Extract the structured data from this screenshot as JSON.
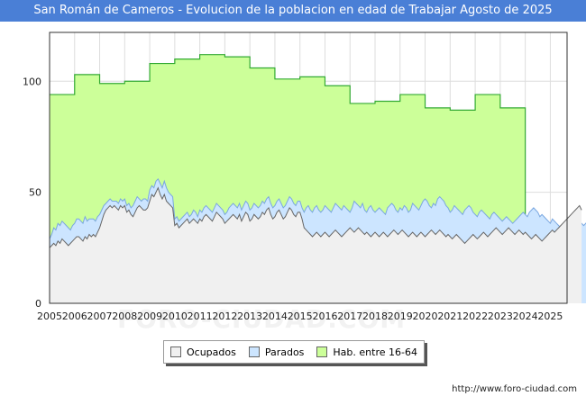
{
  "chart_data": {
    "type": "area",
    "title": "San Román de Cameros - Evolucion de la poblacion en edad de Trabajar Agosto de 2025",
    "x_ticks": [
      "2005",
      "2006",
      "2007",
      "2008",
      "2009",
      "2010",
      "2011",
      "2012",
      "2013",
      "2014",
      "2015",
      "2016",
      "2017",
      "2018",
      "2019",
      "2020",
      "2021",
      "2022",
      "2023",
      "2024",
      "2025"
    ],
    "y_ticks": [
      0,
      50,
      100
    ],
    "ylim": [
      0,
      122
    ],
    "xlim": [
      2005,
      2025.67
    ],
    "grid": true,
    "legend_position": "bottom-center",
    "series": [
      {
        "name": "Hab. entre 16-64",
        "color": "#ccff99",
        "kind": "step",
        "x": [
          2005,
          2006,
          2007,
          2008,
          2009,
          2010,
          2011,
          2012,
          2013,
          2014,
          2015,
          2016,
          2017,
          2018,
          2019,
          2020,
          2021,
          2022,
          2023
        ],
        "values": [
          94,
          103,
          99,
          100,
          108,
          110,
          112,
          111,
          106,
          101,
          102,
          98,
          90,
          91,
          94,
          88,
          87,
          94,
          88
        ]
      },
      {
        "name": "Parados",
        "color": "#cce5ff",
        "kind": "monthly",
        "x_start": 2005,
        "values": [
          29,
          31,
          34,
          33,
          36,
          35,
          37,
          36,
          35,
          34,
          33,
          35,
          36,
          38,
          38,
          37,
          36,
          39,
          37,
          38,
          38,
          38,
          37,
          39,
          40,
          42,
          44,
          45,
          46,
          47,
          46,
          46,
          46,
          45,
          47,
          46,
          47,
          44,
          45,
          43,
          44,
          46,
          48,
          47,
          46,
          47,
          47,
          46,
          51,
          53,
          52,
          55,
          56,
          54,
          52,
          55,
          52,
          50,
          49,
          48,
          38,
          39,
          37,
          38,
          39,
          40,
          41,
          39,
          40,
          42,
          41,
          39,
          42,
          41,
          43,
          44,
          43,
          42,
          41,
          43,
          45,
          44,
          43,
          42,
          40,
          41,
          43,
          44,
          45,
          44,
          43,
          45,
          42,
          44,
          46,
          45,
          42,
          43,
          45,
          44,
          43,
          44,
          46,
          45,
          47,
          48,
          45,
          43,
          44,
          46,
          47,
          45,
          43,
          44,
          46,
          48,
          47,
          45,
          44,
          46,
          46,
          43,
          41,
          43,
          44,
          42,
          41,
          43,
          44,
          42,
          41,
          42,
          44,
          43,
          42,
          41,
          43,
          45,
          44,
          43,
          42,
          44,
          43,
          42,
          41,
          43,
          46,
          45,
          44,
          43,
          45,
          42,
          41,
          43,
          44,
          42,
          41,
          42,
          43,
          42,
          41,
          40,
          43,
          44,
          45,
          44,
          42,
          41,
          43,
          42,
          44,
          43,
          41,
          42,
          45,
          44,
          43,
          42,
          44,
          46,
          47,
          46,
          44,
          43,
          45,
          44,
          47,
          48,
          47,
          46,
          44,
          43,
          41,
          42,
          44,
          43,
          42,
          41,
          40,
          42,
          43,
          44,
          43,
          41,
          40,
          39,
          41,
          42,
          41,
          40,
          39,
          38,
          40,
          41,
          40,
          39,
          38,
          37,
          38,
          39,
          38,
          37,
          36,
          37,
          38,
          39,
          40,
          41,
          40,
          39,
          41,
          42,
          43,
          42,
          41,
          39,
          40,
          39,
          38,
          37,
          36,
          38,
          37,
          36,
          35,
          34,
          35,
          36,
          37,
          36,
          35,
          34,
          35,
          36,
          37,
          36,
          35,
          36,
          37,
          38,
          37,
          36,
          37,
          38,
          39,
          40,
          41,
          42,
          43,
          42
        ]
      },
      {
        "name": "Ocupados",
        "color": "#f0f0f0",
        "kind": "monthly",
        "x_start": 2005,
        "values": [
          25,
          26,
          27,
          26,
          28,
          27,
          29,
          28,
          27,
          26,
          27,
          28,
          29,
          30,
          30,
          29,
          28,
          30,
          29,
          31,
          30,
          31,
          30,
          32,
          34,
          37,
          40,
          42,
          43,
          44,
          43,
          44,
          43,
          42,
          44,
          43,
          44,
          41,
          42,
          40,
          39,
          41,
          43,
          44,
          43,
          42,
          42,
          43,
          46,
          49,
          48,
          50,
          52,
          49,
          47,
          49,
          46,
          45,
          44,
          43,
          35,
          36,
          34,
          35,
          36,
          37,
          38,
          36,
          37,
          38,
          37,
          36,
          38,
          37,
          39,
          40,
          39,
          38,
          37,
          39,
          41,
          40,
          39,
          38,
          36,
          37,
          38,
          39,
          40,
          39,
          38,
          40,
          37,
          39,
          41,
          40,
          37,
          38,
          40,
          39,
          38,
          39,
          41,
          40,
          42,
          43,
          40,
          38,
          39,
          41,
          42,
          40,
          38,
          39,
          41,
          43,
          42,
          40,
          39,
          41,
          41,
          38,
          34,
          33,
          32,
          31,
          30,
          31,
          32,
          31,
          30,
          31,
          32,
          31,
          30,
          31,
          32,
          33,
          32,
          31,
          30,
          31,
          32,
          33,
          34,
          33,
          32,
          33,
          34,
          33,
          32,
          31,
          32,
          31,
          30,
          31,
          32,
          31,
          30,
          31,
          32,
          31,
          30,
          31,
          32,
          33,
          32,
          31,
          32,
          33,
          32,
          31,
          30,
          31,
          32,
          31,
          30,
          31,
          32,
          31,
          30,
          31,
          32,
          33,
          32,
          31,
          32,
          33,
          32,
          31,
          30,
          31,
          30,
          29,
          30,
          31,
          30,
          29,
          28,
          27,
          28,
          29,
          30,
          31,
          30,
          29,
          30,
          31,
          32,
          31,
          30,
          31,
          32,
          33,
          34,
          33,
          32,
          31,
          32,
          33,
          34,
          33,
          32,
          31,
          32,
          33,
          32,
          31,
          32,
          31,
          30,
          29,
          30,
          31,
          30,
          29,
          28,
          29,
          30,
          31,
          32,
          33,
          32,
          33,
          34,
          35,
          36,
          37,
          38,
          39,
          40,
          41,
          42,
          43,
          44,
          42
        ]
      }
    ]
  },
  "legend": {
    "items": [
      {
        "label": "Ocupados",
        "color": "#f0f0f0"
      },
      {
        "label": "Parados",
        "color": "#cce5ff"
      },
      {
        "label": "Hab. entre 16-64",
        "color": "#ccff99"
      }
    ]
  },
  "watermark": "FORO-CIUDAD.COM",
  "footer": {
    "url": "http://www.foro-ciudad.com"
  }
}
